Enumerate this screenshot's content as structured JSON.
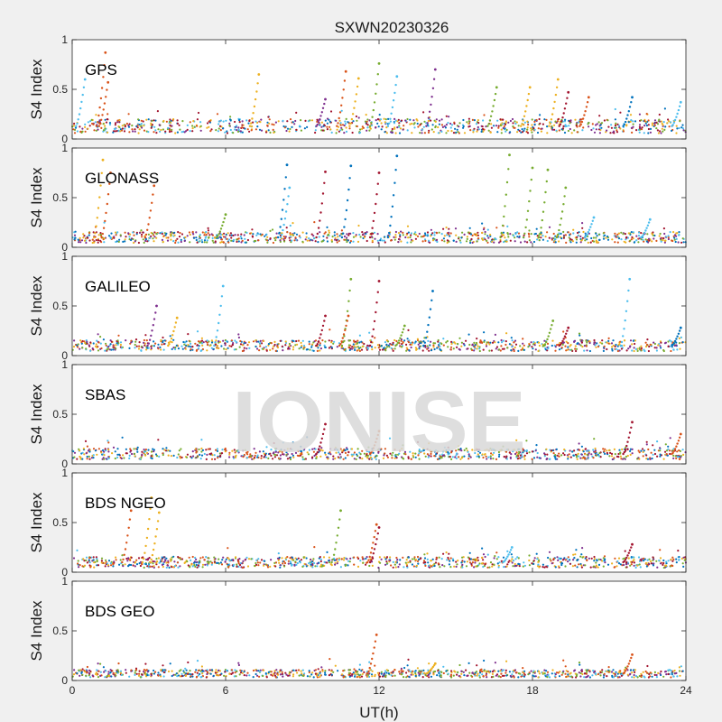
{
  "figure": {
    "title": "SXWN20230326",
    "xlabel": "UT(h)",
    "ylabel": "S4 Index",
    "watermark": "IONISE"
  },
  "colors": {
    "axes_bg": "#ffffff",
    "figure_bg": "#f0f0f0",
    "series": [
      "#0072BD",
      "#D95319",
      "#EDB120",
      "#7E2F8E",
      "#77AC30",
      "#4DBEEE",
      "#A2142F"
    ]
  },
  "chart_data": [
    {
      "type": "scatter",
      "panel_label": "GPS",
      "xlim": [
        0,
        24
      ],
      "ylim": [
        0,
        1
      ],
      "xticks": [
        0,
        6,
        12,
        18,
        24
      ],
      "yticks": [
        0,
        0.5,
        1
      ],
      "ytick_labels": [
        "0",
        "0.5",
        "1"
      ],
      "baseline": 0.13,
      "spikes": [
        [
          0.5,
          0.6,
          5
        ],
        [
          1.3,
          0.87,
          1
        ],
        [
          1.4,
          0.57,
          1
        ],
        [
          7.3,
          0.65,
          2
        ],
        [
          9.9,
          0.4,
          3
        ],
        [
          10.7,
          0.68,
          1
        ],
        [
          11.2,
          0.61,
          2
        ],
        [
          12.0,
          0.76,
          4
        ],
        [
          12.7,
          0.63,
          5
        ],
        [
          14.2,
          0.7,
          3
        ],
        [
          16.6,
          0.52,
          4
        ],
        [
          17.9,
          0.52,
          2
        ],
        [
          19.0,
          0.6,
          2
        ],
        [
          19.4,
          0.47,
          6
        ],
        [
          20.2,
          0.42,
          1
        ],
        [
          21.9,
          0.42,
          0
        ],
        [
          23.8,
          0.37,
          5
        ]
      ]
    },
    {
      "type": "scatter",
      "panel_label": "GLONASS",
      "xlim": [
        0,
        24
      ],
      "ylim": [
        0,
        1
      ],
      "xticks": [
        0,
        6,
        12,
        18,
        24
      ],
      "yticks": [
        0,
        0.5,
        1
      ],
      "ytick_labels": [
        "0",
        "0.5",
        "1"
      ],
      "baseline": 0.1,
      "spikes": [
        [
          1.2,
          0.88,
          2
        ],
        [
          1.5,
          0.75,
          1
        ],
        [
          3.2,
          0.62,
          1
        ],
        [
          6.0,
          0.33,
          4
        ],
        [
          8.4,
          0.83,
          0
        ],
        [
          8.5,
          0.6,
          5
        ],
        [
          9.9,
          0.76,
          6
        ],
        [
          10.9,
          0.82,
          0
        ],
        [
          12.0,
          0.75,
          6
        ],
        [
          12.7,
          0.92,
          0
        ],
        [
          17.1,
          0.93,
          4
        ],
        [
          18.0,
          0.8,
          4
        ],
        [
          18.6,
          0.78,
          4
        ],
        [
          19.3,
          0.6,
          4
        ],
        [
          20.4,
          0.3,
          5
        ],
        [
          22.6,
          0.28,
          5
        ]
      ]
    },
    {
      "type": "scatter",
      "panel_label": "GALILEO",
      "xlim": [
        0,
        24
      ],
      "ylim": [
        0,
        1
      ],
      "xticks": [
        0,
        6,
        12,
        18,
        24
      ],
      "yticks": [
        0,
        0.5,
        1
      ],
      "ytick_labels": [
        "0",
        "0.5",
        "1"
      ],
      "baseline": 0.1,
      "spikes": [
        [
          3.3,
          0.5,
          3
        ],
        [
          4.1,
          0.38,
          2
        ],
        [
          5.9,
          0.7,
          5
        ],
        [
          9.9,
          0.4,
          6
        ],
        [
          10.9,
          0.77,
          4
        ],
        [
          10.8,
          0.4,
          1
        ],
        [
          12.0,
          0.75,
          6
        ],
        [
          13.0,
          0.3,
          4
        ],
        [
          14.1,
          0.65,
          0
        ],
        [
          18.8,
          0.35,
          4
        ],
        [
          19.4,
          0.28,
          6
        ],
        [
          21.8,
          0.77,
          5
        ],
        [
          23.8,
          0.28,
          0
        ]
      ]
    },
    {
      "type": "scatter",
      "panel_label": "SBAS",
      "xlim": [
        0,
        24
      ],
      "ylim": [
        0,
        1
      ],
      "xticks": [
        0,
        6,
        12,
        18,
        24
      ],
      "yticks": [
        0,
        0.5,
        1
      ],
      "ytick_labels": [
        "0",
        "0.5",
        "1"
      ],
      "baseline": 0.1,
      "spikes": [
        [
          9.9,
          0.4,
          6
        ],
        [
          12.0,
          0.33,
          1
        ],
        [
          21.9,
          0.42,
          6
        ],
        [
          23.8,
          0.3,
          1
        ]
      ]
    },
    {
      "type": "scatter",
      "panel_label": "BDS NGEO",
      "xlim": [
        0,
        24
      ],
      "ylim": [
        0,
        1
      ],
      "xticks": [
        0,
        6,
        12,
        18,
        24
      ],
      "yticks": [
        0,
        0.5,
        1
      ],
      "ytick_labels": [
        "0",
        "0.5",
        "1"
      ],
      "baseline": 0.1,
      "spikes": [
        [
          2.3,
          0.62,
          1
        ],
        [
          3.1,
          0.75,
          2
        ],
        [
          3.4,
          0.6,
          2
        ],
        [
          10.5,
          0.62,
          4
        ],
        [
          11.9,
          0.48,
          1
        ],
        [
          12.0,
          0.45,
          6
        ],
        [
          17.2,
          0.25,
          5
        ],
        [
          21.9,
          0.28,
          6
        ]
      ]
    },
    {
      "type": "scatter",
      "panel_label": "BDS GEO",
      "xlim": [
        0,
        24
      ],
      "ylim": [
        0,
        1
      ],
      "xticks": [
        0,
        6,
        12,
        18,
        24
      ],
      "xtick_labels": [
        "0",
        "6",
        "12",
        "18",
        "24"
      ],
      "yticks": [
        0,
        0.5,
        1
      ],
      "ytick_labels": [
        "0",
        "0.5",
        "1"
      ],
      "baseline": 0.07,
      "spikes": [
        [
          11.9,
          0.46,
          1
        ],
        [
          14.2,
          0.17,
          2
        ],
        [
          21.9,
          0.26,
          1
        ]
      ]
    }
  ]
}
